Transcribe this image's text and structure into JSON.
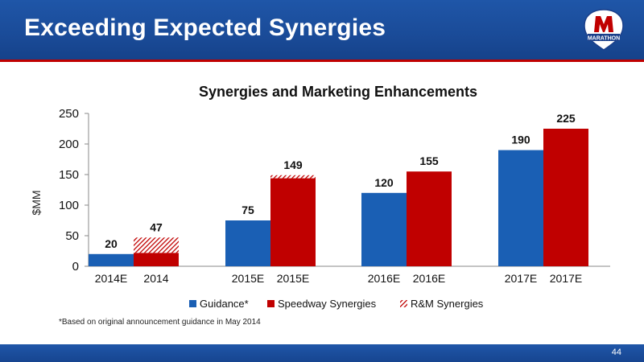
{
  "header": {
    "title": "Exceeding Expected Synergies",
    "logo_text": "MARATHON"
  },
  "colors": {
    "blue": "#1a5fb4",
    "red": "#c00000",
    "header": "#1f56a8"
  },
  "chart_data": {
    "type": "bar",
    "title": "Synergies and Marketing Enhancements",
    "ylabel": "$MM",
    "ylim": [
      0,
      250
    ],
    "yticks": [
      0,
      50,
      100,
      150,
      200,
      250
    ],
    "bars": [
      {
        "group": 0,
        "slot": 0,
        "label": "2014E",
        "series": "Guidance*",
        "value": 20
      },
      {
        "group": 0,
        "slot": 1,
        "label": "2014",
        "series": "Speedway Synergies",
        "value": 22,
        "stack": {
          "series": "R&M Synergies",
          "value": 25
        },
        "total": 47
      },
      {
        "group": 1,
        "slot": 0,
        "label": "2015E",
        "series": "Guidance*",
        "value": 75
      },
      {
        "group": 1,
        "slot": 1,
        "label": "2015E",
        "series": "Speedway Synergies",
        "value": 144,
        "stack": {
          "series": "R&M Synergies",
          "value": 5
        },
        "total": 149
      },
      {
        "group": 2,
        "slot": 0,
        "label": "2016E",
        "series": "Guidance*",
        "value": 120
      },
      {
        "group": 2,
        "slot": 1,
        "label": "2016E",
        "series": "Speedway Synergies",
        "value": 155
      },
      {
        "group": 3,
        "slot": 0,
        "label": "2017E",
        "series": "Guidance*",
        "value": 190
      },
      {
        "group": 3,
        "slot": 1,
        "label": "2017E",
        "series": "Speedway Synergies",
        "value": 225
      }
    ],
    "legend": {
      "position": "bottom",
      "items": [
        {
          "name": "Guidance*",
          "style": "blue"
        },
        {
          "name": "Speedway Synergies",
          "style": "red"
        },
        {
          "name": "R&M Synergies",
          "style": "hatch"
        }
      ]
    }
  },
  "footnote": "*Based on original announcement guidance in May 2014",
  "footer": {
    "page_number": "44"
  }
}
